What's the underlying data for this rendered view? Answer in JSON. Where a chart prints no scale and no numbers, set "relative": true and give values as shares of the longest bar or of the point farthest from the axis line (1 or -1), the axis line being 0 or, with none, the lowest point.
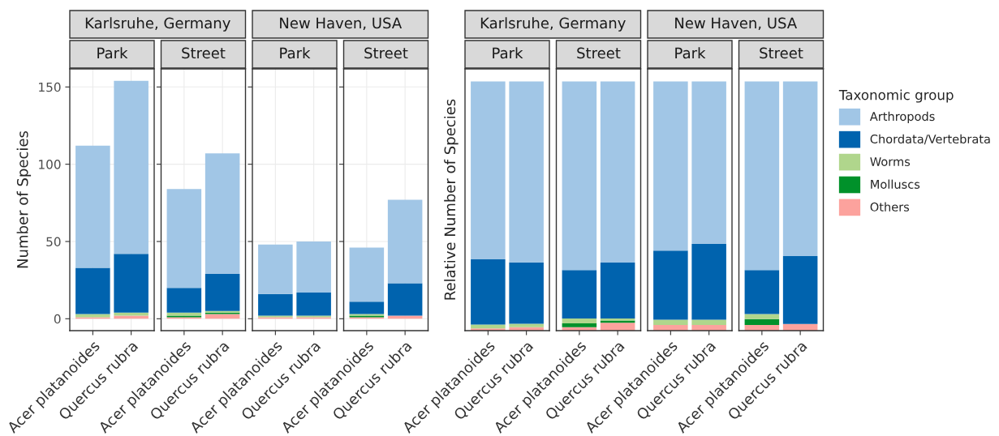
{
  "chart_data": [
    {
      "type": "bar",
      "stacked": true,
      "title": "Karlsruhe, Germany",
      "subtitle": "Park",
      "ylabel": "Number of Species",
      "categories": [
        "Acer platanoides",
        "Quercus rubra"
      ],
      "ylim": [
        -7.7,
        161.7
      ],
      "yticks": [
        0,
        50,
        100,
        150
      ],
      "grid": true,
      "series": [
        {
          "color": "#fca29d",
          "values": [
            1,
            2
          ]
        },
        {
          "color": "#00912a",
          "values": [
            0,
            0
          ]
        },
        {
          "color": "#b0d68c",
          "values": [
            2,
            2
          ]
        },
        {
          "color": "#0063ae",
          "values": [
            30,
            38
          ]
        },
        {
          "color": "#a1c6e6",
          "values": [
            79,
            112
          ]
        }
      ]
    },
    {
      "type": "bar",
      "stacked": true,
      "subtitle": "Street",
      "categories": [
        "Acer platanoides",
        "Quercus rubra"
      ],
      "ylim": [
        -7.7,
        161.7
      ],
      "yticks": [
        0,
        50,
        100,
        150
      ],
      "grid": true,
      "tick_labels": "x",
      "series": [
        {
          "color": "#fca29d",
          "values": [
            1,
            3
          ]
        },
        {
          "color": "#00912a",
          "values": [
            1,
            1
          ]
        },
        {
          "color": "#b0d68c",
          "values": [
            2,
            1
          ]
        },
        {
          "color": "#0063ae",
          "values": [
            16,
            24
          ]
        },
        {
          "color": "#a1c6e6",
          "values": [
            64,
            78
          ]
        }
      ]
    },
    {
      "type": "bar",
      "stacked": true,
      "title": "New Haven, USA",
      "subtitle": "Park",
      "categories": [
        "Acer platanoides",
        "Quercus rubra"
      ],
      "ylim": [
        -7.7,
        161.7
      ],
      "yticks": [
        0,
        50,
        100,
        150
      ],
      "grid": true,
      "tick_labels": "x",
      "series": [
        {
          "color": "#fca29d",
          "values": [
            1,
            1
          ]
        },
        {
          "color": "#00912a",
          "values": [
            0,
            0
          ]
        },
        {
          "color": "#b0d68c",
          "values": [
            1,
            1
          ]
        },
        {
          "color": "#0063ae",
          "values": [
            14,
            15
          ]
        },
        {
          "color": "#a1c6e6",
          "values": [
            32,
            33
          ]
        }
      ]
    },
    {
      "type": "bar",
      "stacked": true,
      "subtitle": "Street",
      "categories": [
        "Acer platanoides",
        "Quercus rubra"
      ],
      "ylim": [
        -7.7,
        161.7
      ],
      "yticks": [
        0,
        50,
        100,
        150
      ],
      "grid": true,
      "tick_labels": "x",
      "series": [
        {
          "color": "#fca29d",
          "values": [
            1,
            2
          ]
        },
        {
          "color": "#00912a",
          "values": [
            1,
            0
          ]
        },
        {
          "color": "#b0d68c",
          "values": [
            1,
            0
          ]
        },
        {
          "color": "#0063ae",
          "values": [
            8,
            21
          ]
        },
        {
          "color": "#a1c6e6",
          "values": [
            35,
            54
          ]
        }
      ]
    },
    {
      "type": "bar",
      "stacked": true,
      "relative": true,
      "title": "Karlsruhe, Germany",
      "subtitle": "Park",
      "ylabel": "Relative Number of Species",
      "categories": [
        "Acer platanoides",
        "Quercus rubra"
      ],
      "series": [
        {
          "color": "#fca29d",
          "values": [
            0.009,
            0.014
          ]
        },
        {
          "color": "#00912a",
          "values": [
            0,
            0
          ]
        },
        {
          "color": "#b0d68c",
          "values": [
            0.015,
            0.014
          ]
        },
        {
          "color": "#0063ae",
          "values": [
            0.262,
            0.246
          ]
        },
        {
          "color": "#a1c6e6",
          "values": [
            0.714,
            0.726
          ]
        }
      ]
    },
    {
      "type": "bar",
      "stacked": true,
      "relative": true,
      "subtitle": "Street",
      "categories": [
        "Acer platanoides",
        "Quercus rubra"
      ],
      "series": [
        {
          "color": "#fca29d",
          "values": [
            0.014,
            0.032
          ]
        },
        {
          "color": "#00912a",
          "values": [
            0.015,
            0.009
          ]
        },
        {
          "color": "#b0d68c",
          "values": [
            0.02,
            0.008
          ]
        },
        {
          "color": "#0063ae",
          "values": [
            0.194,
            0.224
          ]
        },
        {
          "color": "#a1c6e6",
          "values": [
            0.757,
            0.727
          ]
        }
      ]
    },
    {
      "type": "bar",
      "stacked": true,
      "relative": true,
      "title": "New Haven, USA",
      "subtitle": "Park",
      "categories": [
        "Acer platanoides",
        "Quercus rubra"
      ],
      "series": [
        {
          "color": "#fca29d",
          "values": [
            0.023,
            0.023
          ]
        },
        {
          "color": "#00912a",
          "values": [
            0,
            0
          ]
        },
        {
          "color": "#b0d68c",
          "values": [
            0.021,
            0.021
          ]
        },
        {
          "color": "#0063ae",
          "values": [
            0.277,
            0.304
          ]
        },
        {
          "color": "#a1c6e6",
          "values": [
            0.679,
            0.652
          ]
        }
      ]
    },
    {
      "type": "bar",
      "stacked": true,
      "relative": true,
      "subtitle": "Street",
      "categories": [
        "Acer platanoides",
        "Quercus rubra"
      ],
      "legend": "right",
      "legend_title": "Taxonomic group",
      "series": [
        {
          "name": "Others",
          "color": "#fca29d",
          "values": [
            0.023,
            0.027
          ]
        },
        {
          "name": "Molluscs",
          "color": "#00912a",
          "values": [
            0.023,
            0
          ]
        },
        {
          "name": "Worms",
          "color": "#b0d68c",
          "values": [
            0.021,
            0
          ]
        },
        {
          "name": "Chordata/Vertebrata",
          "color": "#0063ae",
          "values": [
            0.176,
            0.272
          ]
        },
        {
          "name": "Arthropods",
          "color": "#a1c6e6",
          "values": [
            0.757,
            0.701
          ]
        }
      ]
    }
  ]
}
